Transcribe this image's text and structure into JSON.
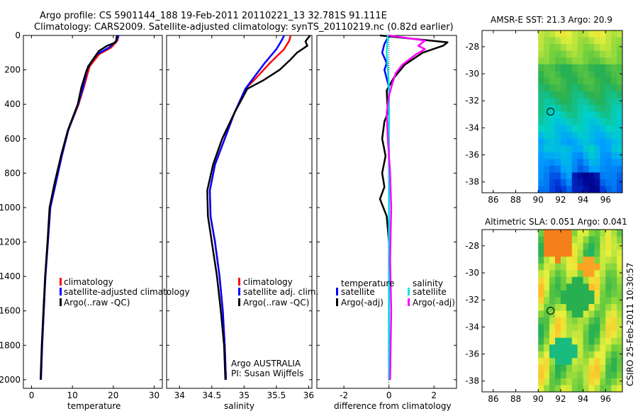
{
  "header": {
    "title_line1": "Argo profile: CS 5901144_188 19-Feb-2011 20110221_13 32.781S 91.111E",
    "title_line2": "Climatology: CARS2009. Satellite-adjusted climatology: synTS_20110219.nc (0.82d earlier)"
  },
  "side_text": "CSIRO 25-Feb-2011 10:30:57",
  "colors": {
    "climatology": "#ff0000",
    "satellite": "#0000ff",
    "argo": "#000000",
    "sal_satellite": "#00e5e5",
    "sal_argo": "#ff00ff"
  },
  "chart_data": [
    {
      "type": "line",
      "id": "temperature",
      "xlabel": "temperature",
      "ylabel": "",
      "xlim": [
        -2,
        32
      ],
      "ylim": [
        2050,
        0
      ],
      "xticks": [
        0,
        10,
        20,
        30
      ],
      "yticks": [
        0,
        200,
        400,
        600,
        800,
        1000,
        1200,
        1400,
        1600,
        1800,
        2000
      ],
      "legend": [
        "climatology",
        "satellite-adjusted climatology",
        "Argo(..raw -QC)"
      ],
      "series": [
        {
          "name": "climatology",
          "color": "#ff0000",
          "x": [
            21.3,
            21.0,
            19.5,
            16.5,
            14.2,
            12.8,
            11.5,
            9.0,
            7.4,
            6.0,
            4.6,
            4.0,
            3.4,
            3.0,
            2.6,
            2.3
          ],
          "y": [
            0,
            30,
            70,
            110,
            180,
            300,
            400,
            550,
            700,
            850,
            1000,
            1200,
            1400,
            1600,
            1800,
            2000
          ]
        },
        {
          "name": "satellite-adjusted climatology",
          "color": "#0000ff",
          "x": [
            21.3,
            20.8,
            19.0,
            16.0,
            13.8,
            12.6,
            11.4,
            9.0,
            7.4,
            6.0,
            4.6,
            4.0,
            3.4,
            3.0,
            2.6,
            2.3
          ],
          "y": [
            0,
            30,
            70,
            110,
            180,
            300,
            400,
            550,
            700,
            850,
            1000,
            1200,
            1400,
            1600,
            1800,
            2000
          ]
        },
        {
          "name": "Argo(..raw -QC)",
          "color": "#000000",
          "x": [
            20.9,
            20.6,
            18.5,
            16.5,
            15.0,
            13.5,
            12.2,
            11.3,
            8.9,
            7.2,
            5.7,
            4.4,
            3.9,
            3.3,
            2.9,
            2.5,
            2.2
          ],
          "y": [
            0,
            40,
            60,
            90,
            140,
            200,
            300,
            400,
            550,
            700,
            850,
            1000,
            1200,
            1400,
            1600,
            1800,
            2000
          ]
        }
      ]
    },
    {
      "type": "line",
      "id": "salinity",
      "xlabel": "salinity",
      "xlim": [
        33.8,
        36.05
      ],
      "ylim": [
        2050,
        0
      ],
      "xticks": [
        34,
        34.5,
        35,
        35.5,
        36
      ],
      "yticks": [
        0,
        200,
        400,
        600,
        800,
        1000,
        1200,
        1400,
        1600,
        1800,
        2000
      ],
      "legend": [
        "climatology",
        "satellite adj. clim.",
        "Argo(..raw -QC)"
      ],
      "annotation_line1": "Argo AUSTRALIA",
      "annotation_line2": "PI: Susan Wijffels",
      "series": [
        {
          "name": "climatology",
          "color": "#ff0000",
          "x": [
            35.72,
            35.7,
            35.62,
            35.4,
            35.18,
            35.02,
            34.85,
            34.7,
            34.55,
            34.47,
            34.48,
            34.55,
            34.62,
            34.67,
            34.7,
            34.72
          ],
          "y": [
            0,
            30,
            80,
            160,
            250,
            310,
            450,
            600,
            750,
            900,
            1050,
            1200,
            1400,
            1600,
            1800,
            2000
          ]
        },
        {
          "name": "satellite adj. clim.",
          "color": "#0000ff",
          "x": [
            35.62,
            35.58,
            35.5,
            35.32,
            35.14,
            35.02,
            34.85,
            34.7,
            34.55,
            34.47,
            34.48,
            34.55,
            34.62,
            34.67,
            34.7,
            34.72
          ],
          "y": [
            0,
            30,
            80,
            160,
            250,
            310,
            450,
            600,
            750,
            900,
            1050,
            1200,
            1400,
            1600,
            1800,
            2000
          ]
        },
        {
          "name": "Argo(..raw -QC)",
          "color": "#000000",
          "x": [
            36.02,
            35.95,
            35.98,
            35.82,
            35.72,
            35.55,
            35.3,
            35.05,
            34.85,
            34.66,
            34.52,
            34.43,
            34.44,
            34.5,
            34.58,
            34.64,
            34.69,
            34.71
          ],
          "y": [
            0,
            35,
            60,
            100,
            140,
            200,
            260,
            310,
            450,
            600,
            750,
            900,
            1050,
            1200,
            1400,
            1600,
            1800,
            2000
          ]
        }
      ]
    },
    {
      "type": "line",
      "id": "difference",
      "xlabel": "difference from climatology",
      "xlim": [
        -3.2,
        3.0
      ],
      "ylim": [
        2050,
        0
      ],
      "xticks": [
        -2,
        0,
        2
      ],
      "yticks": [
        0,
        200,
        400,
        600,
        800,
        1000,
        1200,
        1400,
        1600,
        1800,
        2000
      ],
      "legend_temperature_title": "temperature",
      "legend_salinity_title": "salinity",
      "legend": [
        "satellite",
        "Argo(-adj)",
        "satellite",
        "Argo(-adj)"
      ],
      "series": [
        {
          "name": "temperature satellite",
          "color": "#0000ff",
          "x": [
            0.0,
            -0.2,
            -0.3,
            -0.1,
            -0.2,
            0.0,
            0.0,
            0.0,
            0.0,
            0.0
          ],
          "y": [
            0,
            50,
            100,
            160,
            200,
            300,
            500,
            1000,
            1500,
            2000
          ]
        },
        {
          "name": "temperature Argo(-adj)",
          "color": "#000000",
          "x": [
            -0.4,
            2.6,
            2.4,
            1.5,
            0.7,
            0.2,
            -0.1,
            -0.05,
            -0.2,
            -0.3,
            -0.15,
            -0.3,
            -0.2,
            -0.4,
            -0.1,
            0.0,
            0.0,
            0.0
          ],
          "y": [
            0,
            40,
            60,
            100,
            170,
            250,
            320,
            450,
            500,
            600,
            700,
            800,
            880,
            950,
            1050,
            1200,
            1500,
            2000
          ]
        },
        {
          "name": "salinity satellite",
          "color": "#00e5e5",
          "x": [
            -0.05,
            -0.1,
            -0.05,
            0.0,
            0.0,
            0.0,
            0.0,
            0.0
          ],
          "y": [
            0,
            100,
            200,
            300,
            500,
            1000,
            1500,
            2000
          ]
        },
        {
          "name": "salinity Argo(-adj)",
          "color": "#ff00ff",
          "x": [
            0.0,
            1.6,
            1.3,
            1.6,
            1.2,
            0.6,
            0.3,
            0.15,
            0.0,
            -0.1,
            -0.05,
            0.05,
            0.1,
            0.05,
            0.1,
            0.05
          ],
          "y": [
            0,
            30,
            60,
            80,
            110,
            170,
            220,
            280,
            350,
            450,
            600,
            800,
            1000,
            1300,
            1600,
            2000
          ]
        }
      ]
    },
    {
      "type": "heatmap",
      "id": "amsr_sst",
      "title": "AMSR-E SST: 21.3  Argo: 20.9",
      "xlim": [
        85,
        97.5
      ],
      "ylim": [
        -38.8,
        -26.8
      ],
      "xticks": [
        86,
        88,
        90,
        92,
        94,
        96
      ],
      "yticks": [
        -28,
        -30,
        -32,
        -34,
        -36,
        -38
      ],
      "data_x_start": 90,
      "marker": {
        "lon": 91.1,
        "lat": -32.8
      }
    },
    {
      "type": "heatmap",
      "id": "altimetric_sla",
      "title": "Altimetric SLA: 0.051  Argo: 0.041",
      "xlim": [
        85,
        97.5
      ],
      "ylim": [
        -38.8,
        -26.8
      ],
      "xticks": [
        86,
        88,
        90,
        92,
        94,
        96
      ],
      "yticks": [
        -28,
        -30,
        -32,
        -34,
        -36,
        -38
      ],
      "data_x_start": 90,
      "marker": {
        "lon": 91.1,
        "lat": -32.8
      }
    }
  ]
}
